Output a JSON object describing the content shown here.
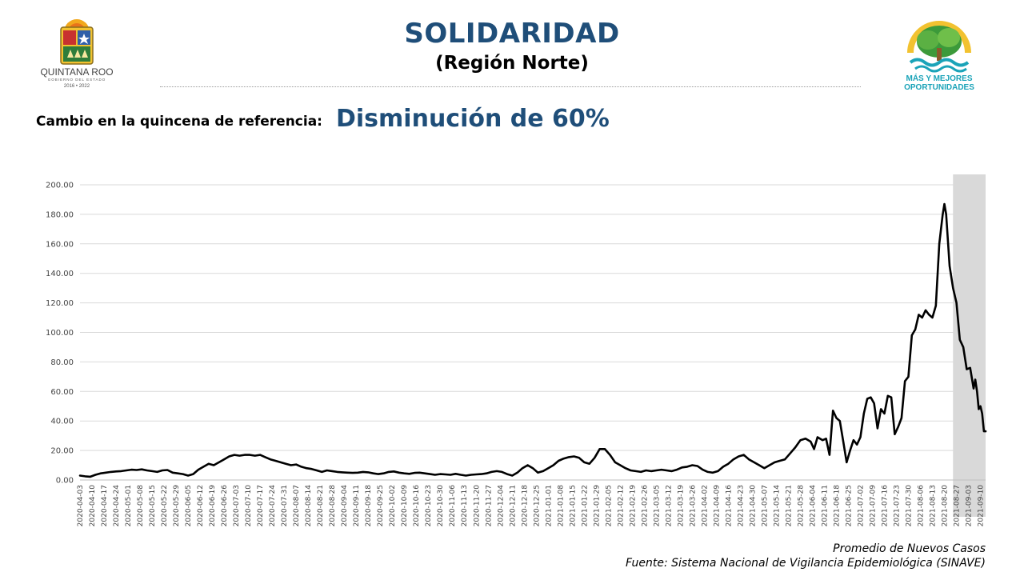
{
  "header": {
    "title": "SOLIDARIDAD",
    "subtitle": "(Región Norte)",
    "left_logo": {
      "name": "QUINTANA ROO",
      "tagline": "GOBIERNO DEL ESTADO",
      "years": "2016 • 2022"
    },
    "right_logo": {
      "line1": "MÁS Y MEJORES",
      "line2": "OPORTUNIDADES"
    }
  },
  "summary": {
    "label": "Cambio en la quincena de referencia:",
    "value": "Disminución de 60%"
  },
  "footer": {
    "series_label": "Promedio de Nuevos Casos",
    "source": "Fuente: Sistema Nacional de Vigilancia Epidemiológica (SINAVE)"
  },
  "colors": {
    "title": "#1f4e79",
    "line": "#000000",
    "highlight": "#d9d9d9",
    "grid": "#d9d9d9"
  },
  "chart_data": {
    "type": "line",
    "title": "",
    "xlabel": "",
    "ylabel": "",
    "ylim": [
      0,
      200
    ],
    "yticks": [
      "0.00",
      "20.00",
      "40.00",
      "60.00",
      "80.00",
      "100.00",
      "120.00",
      "140.00",
      "160.00",
      "180.00",
      "200.00"
    ],
    "grid": true,
    "x_start": "2020-04-03",
    "x_end": "2021-09-13",
    "x_tick_labels": [
      "2020-04-03",
      "2020-04-10",
      "2020-04-17",
      "2020-04-24",
      "2020-05-01",
      "2020-05-08",
      "2020-05-15",
      "2020-05-22",
      "2020-05-29",
      "2020-06-05",
      "2020-06-12",
      "2020-06-19",
      "2020-06-26",
      "2020-07-03",
      "2020-07-10",
      "2020-07-17",
      "2020-07-24",
      "2020-07-31",
      "2020-08-07",
      "2020-08-14",
      "2020-08-21",
      "2020-08-28",
      "2020-09-04",
      "2020-09-11",
      "2020-09-18",
      "2020-09-25",
      "2020-10-02",
      "2020-10-09",
      "2020-10-16",
      "2020-10-23",
      "2020-10-30",
      "2020-11-06",
      "2020-11-13",
      "2020-11-20",
      "2020-11-27",
      "2020-12-04",
      "2020-12-11",
      "2020-12-18",
      "2020-12-25",
      "2021-01-01",
      "2021-01-08",
      "2021-01-15",
      "2021-01-22",
      "2021-01-29",
      "2021-02-05",
      "2021-02-12",
      "2021-02-19",
      "2021-02-26",
      "2021-03-05",
      "2021-03-12",
      "2021-03-19",
      "2021-03-26",
      "2021-04-02",
      "2021-04-09",
      "2021-04-16",
      "2021-04-23",
      "2021-04-30",
      "2021-05-07",
      "2021-05-14",
      "2021-05-21",
      "2021-05-28",
      "2021-06-04",
      "2021-06-11",
      "2021-06-18",
      "2021-06-25",
      "2021-07-02",
      "2021-07-09",
      "2021-07-16",
      "2021-07-23",
      "2021-07-30",
      "2021-08-06",
      "2021-08-13",
      "2021-08-20",
      "2021-08-27",
      "2021-09-03",
      "2021-09-10"
    ],
    "highlight_range": [
      "2021-08-25",
      "2021-09-13"
    ],
    "series": [
      {
        "name": "Promedio de Nuevos Casos",
        "points": [
          [
            "2020-04-03",
            3
          ],
          [
            "2020-04-06",
            2.5
          ],
          [
            "2020-04-09",
            2.2
          ],
          [
            "2020-04-12",
            3.5
          ],
          [
            "2020-04-15",
            4.5
          ],
          [
            "2020-04-18",
            5
          ],
          [
            "2020-04-21",
            5.5
          ],
          [
            "2020-04-24",
            5.8
          ],
          [
            "2020-04-27",
            6
          ],
          [
            "2020-04-30",
            6.5
          ],
          [
            "2020-05-03",
            7
          ],
          [
            "2020-05-06",
            6.8
          ],
          [
            "2020-05-09",
            7.2
          ],
          [
            "2020-05-12",
            6.5
          ],
          [
            "2020-05-15",
            6
          ],
          [
            "2020-05-18",
            5.5
          ],
          [
            "2020-05-21",
            6.5
          ],
          [
            "2020-05-24",
            6.8
          ],
          [
            "2020-05-27",
            5
          ],
          [
            "2020-05-30",
            4.5
          ],
          [
            "2020-06-02",
            4
          ],
          [
            "2020-06-05",
            3
          ],
          [
            "2020-06-08",
            4
          ],
          [
            "2020-06-11",
            7
          ],
          [
            "2020-06-14",
            9
          ],
          [
            "2020-06-17",
            11
          ],
          [
            "2020-06-20",
            10
          ],
          [
            "2020-06-23",
            12
          ],
          [
            "2020-06-26",
            14
          ],
          [
            "2020-06-29",
            16
          ],
          [
            "2020-07-02",
            17
          ],
          [
            "2020-07-05",
            16.5
          ],
          [
            "2020-07-08",
            17
          ],
          [
            "2020-07-11",
            17
          ],
          [
            "2020-07-14",
            16.5
          ],
          [
            "2020-07-17",
            17
          ],
          [
            "2020-07-20",
            15.5
          ],
          [
            "2020-07-23",
            14
          ],
          [
            "2020-07-26",
            13
          ],
          [
            "2020-07-29",
            12
          ],
          [
            "2020-08-01",
            11
          ],
          [
            "2020-08-04",
            10
          ],
          [
            "2020-08-07",
            10.5
          ],
          [
            "2020-08-10",
            9
          ],
          [
            "2020-08-13",
            8
          ],
          [
            "2020-08-16",
            7.5
          ],
          [
            "2020-08-19",
            6.5
          ],
          [
            "2020-08-22",
            5.5
          ],
          [
            "2020-08-25",
            6.5
          ],
          [
            "2020-08-28",
            6
          ],
          [
            "2020-08-31",
            5.5
          ],
          [
            "2020-09-03",
            5.2
          ],
          [
            "2020-09-06",
            5
          ],
          [
            "2020-09-09",
            4.8
          ],
          [
            "2020-09-12",
            5
          ],
          [
            "2020-09-15",
            5.5
          ],
          [
            "2020-09-18",
            5.2
          ],
          [
            "2020-09-21",
            4.5
          ],
          [
            "2020-09-24",
            4
          ],
          [
            "2020-09-27",
            4.5
          ],
          [
            "2020-09-30",
            5.5
          ],
          [
            "2020-10-03",
            5.8
          ],
          [
            "2020-10-06",
            5
          ],
          [
            "2020-10-09",
            4.5
          ],
          [
            "2020-10-12",
            4.2
          ],
          [
            "2020-10-15",
            4.8
          ],
          [
            "2020-10-18",
            5
          ],
          [
            "2020-10-21",
            4.5
          ],
          [
            "2020-10-24",
            4
          ],
          [
            "2020-10-27",
            3.5
          ],
          [
            "2020-10-30",
            4
          ],
          [
            "2020-11-02",
            3.8
          ],
          [
            "2020-11-05",
            3.5
          ],
          [
            "2020-11-08",
            4.2
          ],
          [
            "2020-11-11",
            3.5
          ],
          [
            "2020-11-14",
            3
          ],
          [
            "2020-11-17",
            3.5
          ],
          [
            "2020-11-20",
            3.8
          ],
          [
            "2020-11-23",
            4
          ],
          [
            "2020-11-26",
            4.5
          ],
          [
            "2020-11-29",
            5.5
          ],
          [
            "2020-12-02",
            6
          ],
          [
            "2020-12-05",
            5.5
          ],
          [
            "2020-12-08",
            4
          ],
          [
            "2020-12-11",
            3
          ],
          [
            "2020-12-14",
            5
          ],
          [
            "2020-12-17",
            8
          ],
          [
            "2020-12-20",
            10
          ],
          [
            "2020-12-23",
            8
          ],
          [
            "2020-12-26",
            5
          ],
          [
            "2020-12-29",
            6
          ],
          [
            "2021-01-01",
            8
          ],
          [
            "2021-01-04",
            10
          ],
          [
            "2021-01-07",
            13
          ],
          [
            "2021-01-10",
            14.5
          ],
          [
            "2021-01-13",
            15.5
          ],
          [
            "2021-01-16",
            16
          ],
          [
            "2021-01-19",
            15
          ],
          [
            "2021-01-22",
            12
          ],
          [
            "2021-01-25",
            11
          ],
          [
            "2021-01-28",
            15
          ],
          [
            "2021-01-31",
            21
          ],
          [
            "2021-02-03",
            21
          ],
          [
            "2021-02-06",
            17
          ],
          [
            "2021-02-09",
            12
          ],
          [
            "2021-02-12",
            10
          ],
          [
            "2021-02-15",
            8
          ],
          [
            "2021-02-18",
            6.5
          ],
          [
            "2021-02-21",
            6
          ],
          [
            "2021-02-24",
            5.5
          ],
          [
            "2021-02-27",
            6.5
          ],
          [
            "2021-03-02",
            6
          ],
          [
            "2021-03-05",
            6.5
          ],
          [
            "2021-03-08",
            7
          ],
          [
            "2021-03-11",
            6.5
          ],
          [
            "2021-03-14",
            6
          ],
          [
            "2021-03-17",
            7
          ],
          [
            "2021-03-20",
            8.5
          ],
          [
            "2021-03-23",
            9
          ],
          [
            "2021-03-26",
            10
          ],
          [
            "2021-03-29",
            9.5
          ],
          [
            "2021-04-01",
            7
          ],
          [
            "2021-04-04",
            5.5
          ],
          [
            "2021-04-07",
            5
          ],
          [
            "2021-04-10",
            6
          ],
          [
            "2021-04-13",
            9
          ],
          [
            "2021-04-16",
            11
          ],
          [
            "2021-04-19",
            14
          ],
          [
            "2021-04-22",
            16
          ],
          [
            "2021-04-25",
            17
          ],
          [
            "2021-04-28",
            14
          ],
          [
            "2021-05-01",
            12
          ],
          [
            "2021-05-04",
            10
          ],
          [
            "2021-05-07",
            8
          ],
          [
            "2021-05-10",
            10
          ],
          [
            "2021-05-13",
            12
          ],
          [
            "2021-05-16",
            13
          ],
          [
            "2021-05-19",
            14
          ],
          [
            "2021-05-22",
            18
          ],
          [
            "2021-05-25",
            22
          ],
          [
            "2021-05-28",
            27
          ],
          [
            "2021-05-31",
            28
          ],
          [
            "2021-06-03",
            26
          ],
          [
            "2021-06-05",
            21
          ],
          [
            "2021-06-07",
            29
          ],
          [
            "2021-06-10",
            27
          ],
          [
            "2021-06-12",
            28
          ],
          [
            "2021-06-14",
            17
          ],
          [
            "2021-06-16",
            47
          ],
          [
            "2021-06-18",
            42
          ],
          [
            "2021-06-20",
            40
          ],
          [
            "2021-06-22",
            26
          ],
          [
            "2021-06-24",
            12
          ],
          [
            "2021-06-26",
            20
          ],
          [
            "2021-06-28",
            27
          ],
          [
            "2021-06-30",
            24
          ],
          [
            "2021-07-02",
            29
          ],
          [
            "2021-07-04",
            45
          ],
          [
            "2021-07-06",
            55
          ],
          [
            "2021-07-08",
            56
          ],
          [
            "2021-07-10",
            52
          ],
          [
            "2021-07-12",
            35
          ],
          [
            "2021-07-14",
            48
          ],
          [
            "2021-07-16",
            45
          ],
          [
            "2021-07-18",
            57
          ],
          [
            "2021-07-20",
            56
          ],
          [
            "2021-07-22",
            31
          ],
          [
            "2021-07-24",
            36
          ],
          [
            "2021-07-26",
            42
          ],
          [
            "2021-07-28",
            67
          ],
          [
            "2021-07-30",
            70
          ],
          [
            "2021-08-01",
            98
          ],
          [
            "2021-08-03",
            102
          ],
          [
            "2021-08-05",
            112
          ],
          [
            "2021-08-07",
            110
          ],
          [
            "2021-08-09",
            115
          ],
          [
            "2021-08-11",
            112
          ],
          [
            "2021-08-13",
            110
          ],
          [
            "2021-08-15",
            118
          ],
          [
            "2021-08-17",
            160
          ],
          [
            "2021-08-19",
            180
          ],
          [
            "2021-08-20",
            187
          ],
          [
            "2021-08-21",
            180
          ],
          [
            "2021-08-23",
            145
          ],
          [
            "2021-08-25",
            130
          ],
          [
            "2021-08-27",
            120
          ],
          [
            "2021-08-29",
            95
          ],
          [
            "2021-08-31",
            90
          ],
          [
            "2021-09-02",
            75
          ],
          [
            "2021-09-04",
            76
          ],
          [
            "2021-09-06",
            62
          ],
          [
            "2021-09-07",
            68
          ],
          [
            "2021-09-08",
            60
          ],
          [
            "2021-09-09",
            48
          ],
          [
            "2021-09-10",
            50
          ],
          [
            "2021-09-11",
            45
          ],
          [
            "2021-09-12",
            33
          ],
          [
            "2021-09-13",
            33
          ]
        ]
      }
    ]
  }
}
